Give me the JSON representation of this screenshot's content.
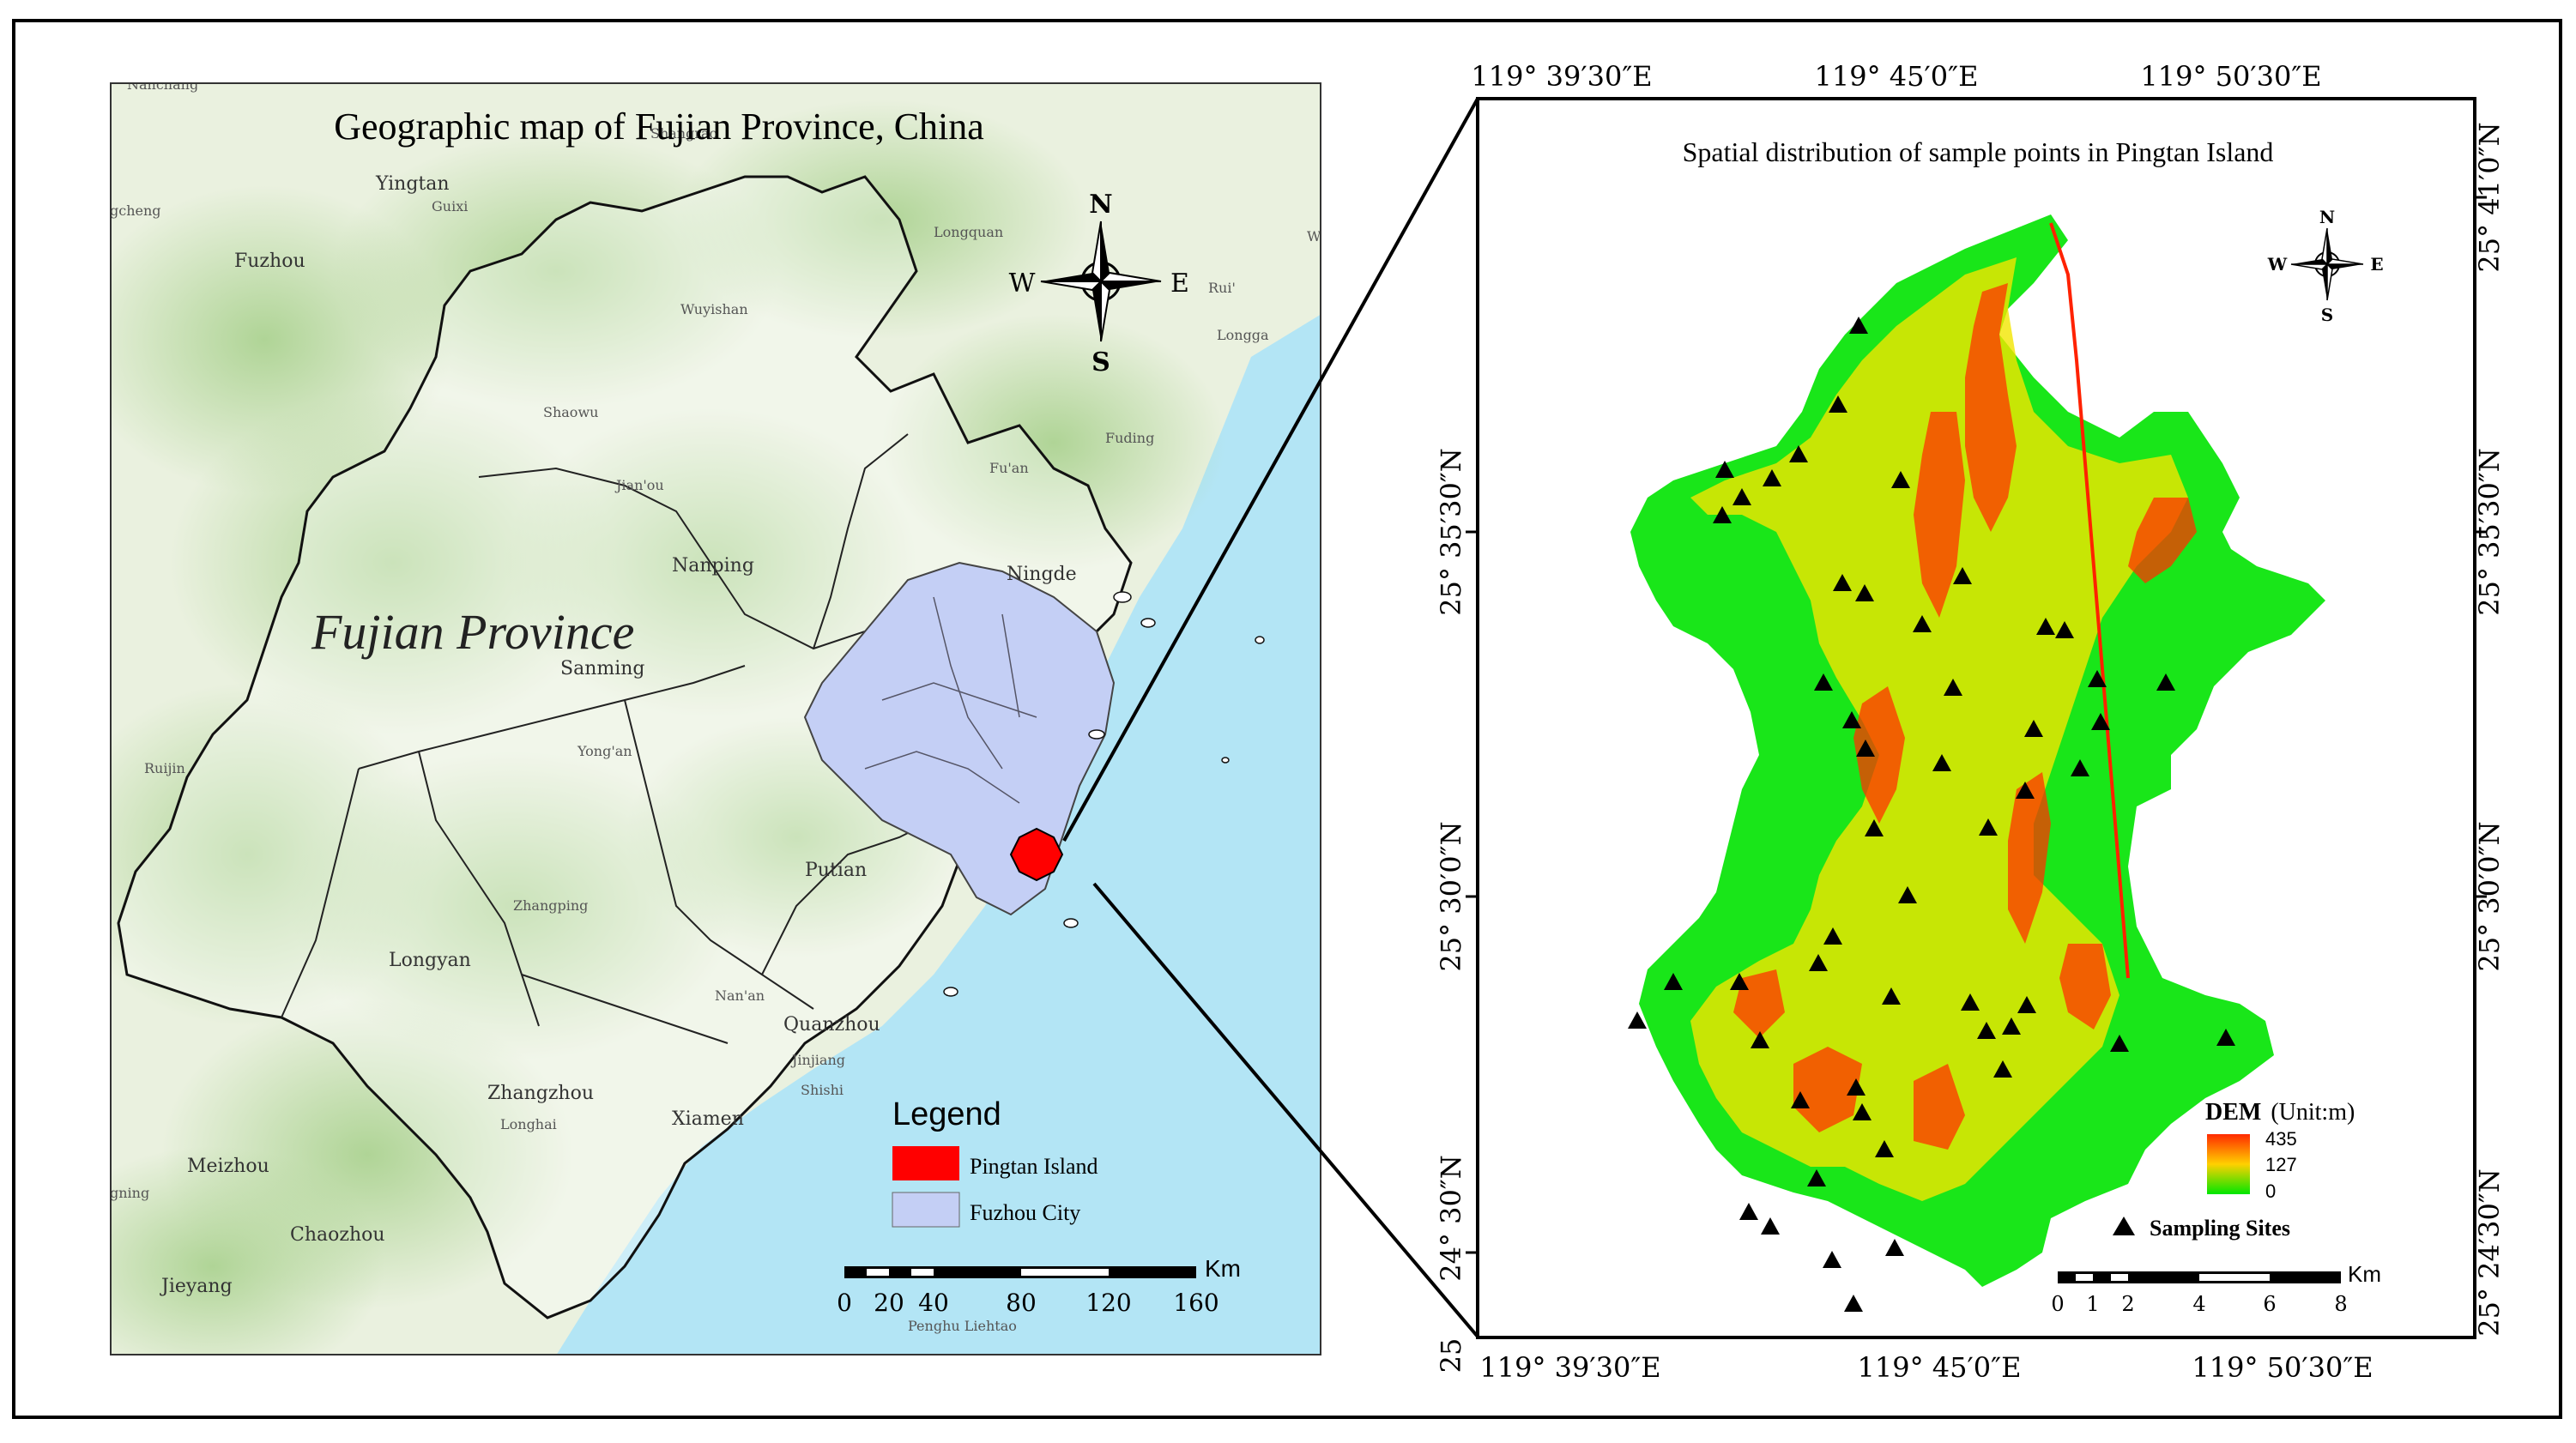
{
  "left_map": {
    "title": "Geographic map of Fujian Province, China",
    "province_label": "Fujian Province",
    "compass": {
      "n": "N",
      "s": "S",
      "e": "E",
      "w": "W"
    },
    "cities": [
      {
        "name": "Yingtan",
        "size": "l"
      },
      {
        "name": "Guixi",
        "size": "s"
      },
      {
        "name": "gcheng",
        "size": "s"
      },
      {
        "name": "Fuzhou",
        "size": "l"
      },
      {
        "name": "Longquan",
        "size": "s"
      },
      {
        "name": "Wuyishan",
        "size": "s"
      },
      {
        "name": "Shaowu",
        "size": "s"
      },
      {
        "name": "Fuding",
        "size": "s"
      },
      {
        "name": "Fu'an",
        "size": "s"
      },
      {
        "name": "Jian'ou",
        "size": "s"
      },
      {
        "name": "Nanping",
        "size": "l"
      },
      {
        "name": "Ningde",
        "size": "l"
      },
      {
        "name": "Sanming",
        "size": "l"
      },
      {
        "name": "Yong'an",
        "size": "s"
      },
      {
        "name": "Ruijin",
        "size": "s"
      },
      {
        "name": "Putian",
        "size": "l"
      },
      {
        "name": "Zhangping",
        "size": "s"
      },
      {
        "name": "Longyan",
        "size": "l"
      },
      {
        "name": "Nan'an",
        "size": "s"
      },
      {
        "name": "Quanzhou",
        "size": "l"
      },
      {
        "name": "Jinjiang",
        "size": "s"
      },
      {
        "name": "Shishi",
        "size": "s"
      },
      {
        "name": "Zhangzhou",
        "size": "l"
      },
      {
        "name": "Longhai",
        "size": "s"
      },
      {
        "name": "Xiamen",
        "size": "l"
      },
      {
        "name": "Meizhou",
        "size": "l"
      },
      {
        "name": "gning",
        "size": "s"
      },
      {
        "name": "Chaozhou",
        "size": "l"
      },
      {
        "name": "Jieyang",
        "size": "l"
      },
      {
        "name": "Penghu Liehtao",
        "size": "s"
      },
      {
        "name": "Shangrao",
        "size": "s"
      },
      {
        "name": "Nanchang",
        "size": "s"
      },
      {
        "name": "Rui'",
        "size": "s"
      },
      {
        "name": "Longga",
        "size": "s"
      },
      {
        "name": "W",
        "size": "s"
      }
    ],
    "legend": {
      "title": "Legend",
      "items": [
        {
          "label": "Pingtan Island",
          "color": "#ff0000"
        },
        {
          "label": "Fuzhou City",
          "color": "#c4cff5"
        }
      ]
    },
    "scale": {
      "unit": "Km",
      "ticks": [
        "0",
        "20",
        "40",
        "80",
        "120",
        "160"
      ]
    }
  },
  "right_map": {
    "title": "Spatial distribution of sample points in Pingtan Island",
    "top_axis": [
      "119° 39′30″E",
      "119° 45′0″E",
      "119° 50′30″E"
    ],
    "bottom_axis": [
      "119° 39′30″E",
      "119° 45′0″E",
      "119° 50′30″E"
    ],
    "left_axis": [
      "25° 35′30″N",
      "25° 30′0″N",
      "24° 30″N",
      "25"
    ],
    "right_axis": [
      "25° 41′0″N",
      "25° 35′30″N",
      "25° 30′0″N",
      "25° 24′30″N"
    ],
    "compass": {
      "n": "N",
      "s": "S",
      "e": "E",
      "w": "W"
    },
    "dem_legend": {
      "title": "DEM",
      "unit": "(Unit:m)",
      "max": "435",
      "mid": "127",
      "min": "0",
      "colors": [
        "#ff2a00",
        "#ffd000",
        "#00e600"
      ]
    },
    "sites_legend": "Sampling Sites",
    "scale": {
      "unit": "Km",
      "ticks": [
        "0",
        "1",
        "2",
        "4",
        "6",
        "8"
      ]
    },
    "colors": {
      "land": "#19e619",
      "elev_mid": "#f2e600",
      "elev_high": "#ff3300",
      "ocean_left": "#b8e6f5"
    }
  }
}
